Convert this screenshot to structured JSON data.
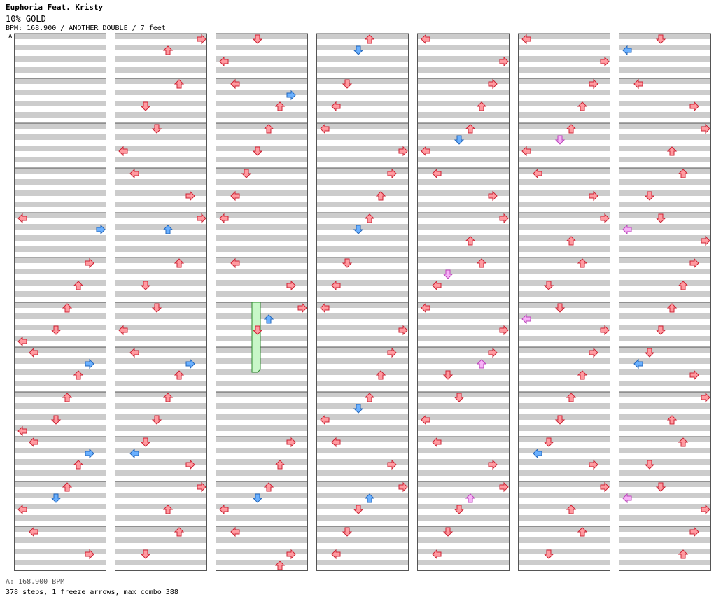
{
  "song_title": "Euphoria Feat. Kristy",
  "rating": "10% GOLD",
  "meta_line": "BPM: 168.900 / ANOTHER DOUBLE / 7 feet",
  "bpm_marker": "A",
  "bpm_footer": "A: 168.900 BPM",
  "stats": "378 steps, 1 freeze arrows, max combo 388",
  "colors": {
    "quarter": "#ff9aa0",
    "eighth": "#6ab0ff",
    "sixteenth": "#f7b1f7",
    "freeze": "#c8f7c8",
    "stripe": "#cccccc",
    "border": "#555555"
  },
  "legend": {
    "note_colors": [
      "red = quarter",
      "blue = eighth",
      "pink = sixteenth"
    ]
  },
  "chart_data": {
    "type": "step-chart",
    "columns": 7,
    "measures_per_column": 12,
    "lanes": [
      "left",
      "down",
      "up",
      "right"
    ],
    "notes": [
      [
        0,
        4,
        0,
        "q"
      ],
      [
        0,
        4,
        4,
        "e"
      ],
      [
        0,
        5,
        0,
        "q"
      ],
      [
        0,
        5,
        8,
        "q"
      ],
      [
        0,
        6,
        0,
        "q"
      ],
      [
        0,
        6,
        8,
        "q"
      ],
      [
        0,
        6,
        12,
        "q"
      ],
      [
        0,
        7,
        0,
        "q"
      ],
      [
        0,
        7,
        4,
        "e"
      ],
      [
        0,
        7,
        8,
        "q"
      ],
      [
        0,
        8,
        0,
        "q"
      ],
      [
        0,
        8,
        8,
        "q"
      ],
      [
        0,
        8,
        12,
        "q"
      ],
      [
        0,
        9,
        0,
        "q"
      ],
      [
        0,
        9,
        4,
        "e"
      ],
      [
        0,
        9,
        8,
        "q"
      ],
      [
        0,
        10,
        0,
        "q"
      ],
      [
        0,
        10,
        4,
        "e"
      ],
      [
        0,
        10,
        8,
        "q"
      ],
      [
        0,
        11,
        0,
        "q"
      ],
      [
        0,
        11,
        8,
        "q"
      ],
      [
        1,
        0,
        0,
        "q"
      ],
      [
        1,
        0,
        4,
        "q"
      ],
      [
        1,
        1,
        0,
        "q"
      ],
      [
        1,
        1,
        8,
        "q"
      ],
      [
        1,
        2,
        0,
        "q"
      ],
      [
        1,
        2,
        8,
        "q"
      ],
      [
        1,
        3,
        0,
        "q"
      ],
      [
        1,
        3,
        8,
        "q"
      ],
      [
        1,
        4,
        0,
        "q"
      ],
      [
        1,
        4,
        4,
        "e"
      ],
      [
        1,
        5,
        0,
        "q"
      ],
      [
        1,
        5,
        8,
        "q"
      ],
      [
        1,
        6,
        0,
        "q"
      ],
      [
        1,
        6,
        8,
        "q"
      ],
      [
        1,
        7,
        0,
        "q"
      ],
      [
        1,
        7,
        4,
        "e"
      ],
      [
        1,
        7,
        8,
        "q"
      ],
      [
        1,
        8,
        0,
        "q"
      ],
      [
        1,
        8,
        8,
        "q"
      ],
      [
        1,
        9,
        0,
        "q"
      ],
      [
        1,
        9,
        4,
        "e"
      ],
      [
        1,
        9,
        8,
        "q"
      ],
      [
        1,
        10,
        0,
        "q"
      ],
      [
        1,
        10,
        8,
        "q"
      ],
      [
        1,
        11,
        0,
        "q"
      ],
      [
        1,
        11,
        8,
        "q"
      ],
      [
        2,
        0,
        0,
        "q"
      ],
      [
        2,
        0,
        8,
        "q"
      ],
      [
        2,
        1,
        0,
        "q"
      ],
      [
        2,
        1,
        4,
        "e"
      ],
      [
        2,
        1,
        8,
        "q"
      ],
      [
        2,
        2,
        0,
        "q"
      ],
      [
        2,
        2,
        8,
        "q"
      ],
      [
        2,
        3,
        0,
        "q"
      ],
      [
        2,
        3,
        8,
        "q"
      ],
      [
        2,
        4,
        0,
        "q"
      ],
      [
        2,
        5,
        0,
        "q"
      ],
      [
        2,
        5,
        8,
        "q"
      ],
      [
        2,
        6,
        0,
        "q"
      ],
      [
        2,
        6,
        4,
        "e"
      ],
      [
        2,
        6,
        8,
        "q"
      ],
      [
        2,
        9,
        0,
        "q"
      ],
      [
        2,
        9,
        8,
        "q"
      ],
      [
        2,
        10,
        0,
        "q"
      ],
      [
        2,
        10,
        4,
        "e"
      ],
      [
        2,
        10,
        8,
        "q"
      ],
      [
        2,
        11,
        0,
        "q"
      ],
      [
        2,
        11,
        8,
        "q"
      ],
      [
        2,
        11,
        12,
        "q"
      ],
      [
        3,
        0,
        0,
        "q"
      ],
      [
        3,
        0,
        4,
        "e"
      ],
      [
        3,
        1,
        0,
        "q"
      ],
      [
        3,
        1,
        8,
        "q"
      ],
      [
        3,
        2,
        0,
        "q"
      ],
      [
        3,
        2,
        8,
        "q"
      ],
      [
        3,
        3,
        0,
        "q"
      ],
      [
        3,
        3,
        8,
        "q"
      ],
      [
        3,
        4,
        0,
        "q"
      ],
      [
        3,
        4,
        4,
        "e"
      ],
      [
        3,
        5,
        0,
        "q"
      ],
      [
        3,
        5,
        8,
        "q"
      ],
      [
        3,
        6,
        0,
        "q"
      ],
      [
        3,
        6,
        8,
        "q"
      ],
      [
        3,
        7,
        0,
        "q"
      ],
      [
        3,
        7,
        8,
        "q"
      ],
      [
        3,
        8,
        0,
        "q"
      ],
      [
        3,
        8,
        4,
        "e"
      ],
      [
        3,
        8,
        8,
        "q"
      ],
      [
        3,
        9,
        0,
        "q"
      ],
      [
        3,
        9,
        8,
        "q"
      ],
      [
        3,
        10,
        0,
        "q"
      ],
      [
        3,
        10,
        4,
        "e"
      ],
      [
        3,
        10,
        8,
        "q"
      ],
      [
        3,
        11,
        0,
        "q"
      ],
      [
        3,
        11,
        8,
        "q"
      ],
      [
        4,
        0,
        0,
        "q"
      ],
      [
        4,
        0,
        8,
        "q"
      ],
      [
        4,
        1,
        0,
        "q"
      ],
      [
        4,
        1,
        8,
        "q"
      ],
      [
        4,
        2,
        0,
        "q"
      ],
      [
        4,
        2,
        4,
        "e"
      ],
      [
        4,
        2,
        8,
        "q"
      ],
      [
        4,
        3,
        0,
        "q"
      ],
      [
        4,
        3,
        8,
        "q"
      ],
      [
        4,
        4,
        0,
        "q"
      ],
      [
        4,
        4,
        8,
        "q"
      ],
      [
        4,
        5,
        0,
        "q"
      ],
      [
        4,
        5,
        4,
        "s"
      ],
      [
        4,
        5,
        8,
        "q"
      ],
      [
        4,
        6,
        0,
        "q"
      ],
      [
        4,
        6,
        8,
        "q"
      ],
      [
        4,
        7,
        0,
        "q"
      ],
      [
        4,
        7,
        4,
        "s"
      ],
      [
        4,
        7,
        8,
        "q"
      ],
      [
        4,
        8,
        0,
        "q"
      ],
      [
        4,
        8,
        8,
        "q"
      ],
      [
        4,
        9,
        0,
        "q"
      ],
      [
        4,
        9,
        8,
        "q"
      ],
      [
        4,
        10,
        0,
        "q"
      ],
      [
        4,
        10,
        4,
        "s"
      ],
      [
        4,
        10,
        8,
        "q"
      ],
      [
        4,
        11,
        0,
        "q"
      ],
      [
        4,
        11,
        8,
        "q"
      ],
      [
        5,
        0,
        0,
        "q"
      ],
      [
        5,
        0,
        8,
        "q"
      ],
      [
        5,
        1,
        0,
        "q"
      ],
      [
        5,
        1,
        8,
        "q"
      ],
      [
        5,
        2,
        0,
        "q"
      ],
      [
        5,
        2,
        4,
        "s"
      ],
      [
        5,
        2,
        8,
        "q"
      ],
      [
        5,
        3,
        0,
        "q"
      ],
      [
        5,
        3,
        8,
        "q"
      ],
      [
        5,
        4,
        0,
        "q"
      ],
      [
        5,
        4,
        8,
        "q"
      ],
      [
        5,
        5,
        0,
        "q"
      ],
      [
        5,
        5,
        8,
        "q"
      ],
      [
        5,
        6,
        0,
        "q"
      ],
      [
        5,
        6,
        4,
        "s"
      ],
      [
        5,
        6,
        8,
        "q"
      ],
      [
        5,
        7,
        0,
        "q"
      ],
      [
        5,
        7,
        8,
        "q"
      ],
      [
        5,
        8,
        0,
        "q"
      ],
      [
        5,
        8,
        8,
        "q"
      ],
      [
        5,
        9,
        0,
        "q"
      ],
      [
        5,
        9,
        4,
        "e"
      ],
      [
        5,
        9,
        8,
        "q"
      ],
      [
        5,
        10,
        0,
        "q"
      ],
      [
        5,
        10,
        8,
        "q"
      ],
      [
        5,
        11,
        0,
        "q"
      ],
      [
        5,
        11,
        8,
        "q"
      ],
      [
        6,
        0,
        0,
        "q"
      ],
      [
        6,
        0,
        4,
        "e"
      ],
      [
        6,
        1,
        0,
        "q"
      ],
      [
        6,
        1,
        8,
        "q"
      ],
      [
        6,
        2,
        0,
        "q"
      ],
      [
        6,
        2,
        8,
        "q"
      ],
      [
        6,
        3,
        0,
        "q"
      ],
      [
        6,
        3,
        8,
        "q"
      ],
      [
        6,
        4,
        0,
        "q"
      ],
      [
        6,
        4,
        4,
        "s"
      ],
      [
        6,
        4,
        8,
        "q"
      ],
      [
        6,
        5,
        0,
        "q"
      ],
      [
        6,
        5,
        8,
        "q"
      ],
      [
        6,
        6,
        0,
        "q"
      ],
      [
        6,
        6,
        8,
        "q"
      ],
      [
        6,
        7,
        0,
        "q"
      ],
      [
        6,
        7,
        4,
        "e"
      ],
      [
        6,
        7,
        8,
        "q"
      ],
      [
        6,
        8,
        0,
        "q"
      ],
      [
        6,
        8,
        8,
        "q"
      ],
      [
        6,
        9,
        0,
        "q"
      ],
      [
        6,
        9,
        8,
        "q"
      ],
      [
        6,
        10,
        0,
        "q"
      ],
      [
        6,
        10,
        4,
        "s"
      ],
      [
        6,
        10,
        8,
        "q"
      ],
      [
        6,
        11,
        0,
        "q"
      ],
      [
        6,
        11,
        8,
        "q"
      ]
    ],
    "freeze_arrows": [
      {
        "column": 2,
        "measure": 6,
        "start_row": 0,
        "end_measure": 7,
        "end_row": 5
      }
    ]
  }
}
